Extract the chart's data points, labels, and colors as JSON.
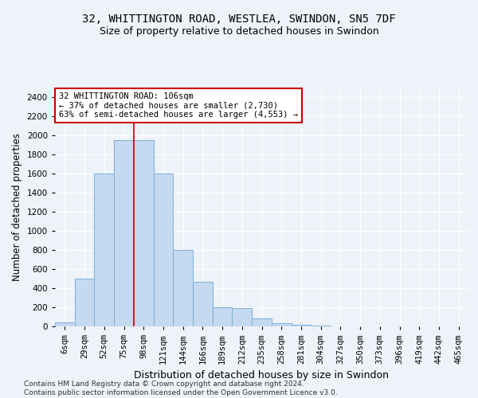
{
  "title_line1": "32, WHITTINGTON ROAD, WESTLEA, SWINDON, SN5 7DF",
  "title_line2": "Size of property relative to detached houses in Swindon",
  "xlabel": "Distribution of detached houses by size in Swindon",
  "ylabel": "Number of detached properties",
  "footer_line1": "Contains HM Land Registry data © Crown copyright and database right 2024.",
  "footer_line2": "Contains public sector information licensed under the Open Government Licence v3.0.",
  "categories": [
    "6sqm",
    "29sqm",
    "52sqm",
    "75sqm",
    "98sqm",
    "121sqm",
    "144sqm",
    "166sqm",
    "189sqm",
    "212sqm",
    "235sqm",
    "258sqm",
    "281sqm",
    "304sqm",
    "327sqm",
    "350sqm",
    "373sqm",
    "396sqm",
    "419sqm",
    "442sqm",
    "465sqm"
  ],
  "values": [
    40,
    500,
    1600,
    1950,
    1950,
    1600,
    800,
    470,
    200,
    190,
    85,
    30,
    20,
    10,
    0,
    0,
    0,
    0,
    0,
    0,
    0
  ],
  "bar_color": "#c5d9f0",
  "bar_edge_color": "#7ab0d8",
  "bar_linewidth": 0.7,
  "vline_index": 4,
  "vline_color": "#cc0000",
  "annotation_text": "32 WHITTINGTON ROAD: 106sqm\n← 37% of detached houses are smaller (2,730)\n63% of semi-detached houses are larger (4,553) →",
  "annotation_box_edgecolor": "#cc0000",
  "annotation_box_facecolor": "#ffffff",
  "ylim": [
    0,
    2500
  ],
  "yticks": [
    0,
    200,
    400,
    600,
    800,
    1000,
    1200,
    1400,
    1600,
    1800,
    2000,
    2200,
    2400
  ],
  "background_color": "#eef2f9",
  "grid_color": "#ffffff",
  "title_fontsize": 10,
  "subtitle_fontsize": 9,
  "axis_label_fontsize": 8.5,
  "tick_fontsize": 7.5,
  "annotation_fontsize": 7.5,
  "footer_fontsize": 6.5
}
